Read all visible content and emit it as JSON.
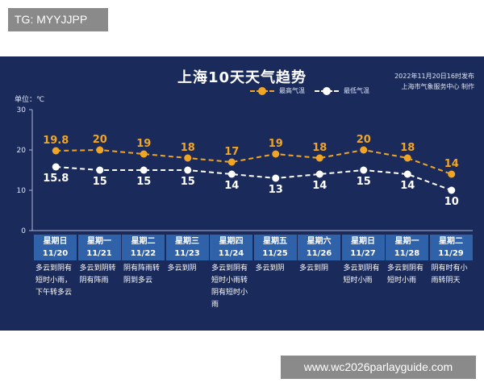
{
  "watermark_top": "TG: MYYJJPP",
  "watermark_bottom": "www.wc2026parlayguide.com",
  "chart_data": {
    "type": "line",
    "title": "上海10天天气趋势",
    "publish_line1": "2022年11月20日16时发布",
    "publish_line2": "上海市气象服务中心 制作",
    "ylabel": "单位：℃",
    "ylim": [
      0,
      30
    ],
    "yticks": [
      "0",
      "10",
      "20",
      "30"
    ],
    "legend_position": "top-center",
    "categories": [
      "11/20",
      "11/21",
      "11/22",
      "11/23",
      "11/24",
      "11/25",
      "11/26",
      "11/27",
      "11/28",
      "11/29"
    ],
    "weekdays": [
      "星期日",
      "星期一",
      "星期二",
      "星期三",
      "星期四",
      "星期五",
      "星期六",
      "星期日",
      "星期一",
      "星期二"
    ],
    "descriptions": [
      "多云到阴有\n短时小雨，\n下午转多云",
      "多云到阴转\n阴有阵雨",
      "阴有阵雨转\n阴到多云",
      "多云到阴",
      "多云到阴有\n短时小雨转\n阴有短时小\n雨",
      "多云到阴",
      "多云到阴",
      "多云到阴有\n短时小雨",
      "多云到阴有\n短时小雨",
      "阴有时有小\n雨转阴天"
    ],
    "series": [
      {
        "name": "最高气温",
        "color": "#f0a524",
        "values": [
          19.8,
          20,
          19,
          18,
          17,
          19,
          18,
          20,
          18,
          14
        ],
        "labels": [
          "19.8",
          "20",
          "19",
          "18",
          "17",
          "19",
          "18",
          "20",
          "18",
          "14"
        ]
      },
      {
        "name": "最低气温",
        "color": "#ffffff",
        "values": [
          15.8,
          15,
          15,
          15,
          14,
          13,
          14,
          15,
          14,
          10
        ],
        "labels": [
          "15.8",
          "15",
          "15",
          "15",
          "14",
          "13",
          "14",
          "15",
          "14",
          "10"
        ]
      }
    ]
  }
}
